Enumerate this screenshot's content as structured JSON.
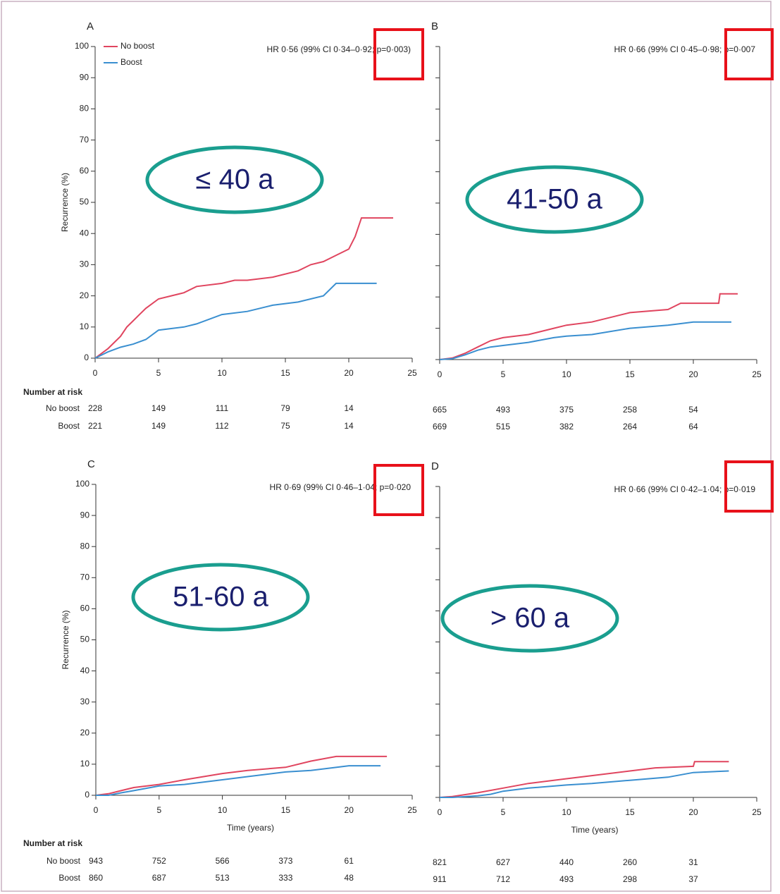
{
  "chart_data": [
    {
      "type": "line",
      "panel": "A",
      "annotation": "≤ 40 a",
      "hr_text": "HR 0·56 (99% CI 0·34–0·92; p=0·003)",
      "ylabel": "Recurrence (%)",
      "risk_title": "Number at risk",
      "show_ytick_labels": true,
      "legend": true,
      "xlim": [
        0,
        25
      ],
      "ylim": [
        0,
        100
      ],
      "xticks": [
        0,
        5,
        10,
        15,
        20,
        25
      ],
      "yticks": [
        0,
        10,
        20,
        30,
        40,
        50,
        60,
        70,
        80,
        90,
        100
      ],
      "series": [
        {
          "name": "No boost",
          "color": "#e0455f",
          "x": [
            0,
            1,
            1.5,
            2,
            2.5,
            3,
            3.5,
            4,
            5,
            6,
            7,
            8,
            10,
            11,
            12,
            14,
            16,
            17,
            18,
            19,
            20,
            20.5,
            21,
            23.5
          ],
          "values": [
            0,
            3,
            5,
            7,
            10,
            12,
            14,
            16,
            19,
            20,
            21,
            23,
            24,
            25,
            25,
            26,
            28,
            30,
            31,
            33,
            35,
            39,
            45,
            45
          ],
          "risk": [
            228,
            149,
            111,
            79,
            14
          ]
        },
        {
          "name": "Boost",
          "color": "#3a8fd0",
          "x": [
            0,
            1,
            2,
            3,
            4,
            5,
            7,
            8,
            10,
            12,
            14,
            16,
            18,
            19,
            20,
            22.2
          ],
          "values": [
            0,
            2,
            3.5,
            4.5,
            6,
            9,
            10,
            11,
            14,
            15,
            17,
            18,
            20,
            24,
            24,
            24
          ],
          "risk": [
            221,
            149,
            112,
            75,
            14
          ]
        }
      ]
    },
    {
      "type": "line",
      "panel": "B",
      "annotation": "41-50 a",
      "hr_text": "HR 0·66 (99% CI 0·45–0·98; p=0·007",
      "show_ytick_labels": false,
      "legend": false,
      "xlim": [
        0,
        25
      ],
      "ylim": [
        0,
        100
      ],
      "xticks": [
        0,
        5,
        10,
        15,
        20,
        25
      ],
      "yticks": [
        0,
        10,
        20,
        30,
        40,
        50,
        60,
        70,
        80,
        90,
        100
      ],
      "series": [
        {
          "color": "#e0455f",
          "x": [
            0,
            1,
            2,
            3,
            4,
            5,
            7,
            9,
            10,
            12,
            15,
            18,
            19,
            22,
            22.1,
            23.5
          ],
          "values": [
            0,
            0.5,
            2,
            4,
            6,
            7,
            8,
            10,
            11,
            12,
            15,
            16,
            18,
            18,
            21,
            21
          ],
          "risk": [
            665,
            493,
            375,
            258,
            54
          ]
        },
        {
          "color": "#3a8fd0",
          "x": [
            0,
            1,
            2,
            3,
            4,
            5,
            7,
            9,
            10,
            12,
            15,
            18,
            20,
            23
          ],
          "values": [
            0,
            0.3,
            1.5,
            3,
            4,
            4.5,
            5.5,
            7,
            7.5,
            8,
            10,
            11,
            12,
            12
          ],
          "risk": [
            669,
            515,
            382,
            264,
            64
          ]
        }
      ]
    },
    {
      "type": "line",
      "panel": "C",
      "annotation": "51-60 a",
      "hr_text": "HR 0·69 (99% CI 0·46–1·04; p=0·020",
      "ylabel": "Recurrence (%)",
      "xlabel": "Time (years)",
      "risk_title": "Number at risk",
      "show_ytick_labels": true,
      "legend": false,
      "xlim": [
        0,
        25
      ],
      "ylim": [
        0,
        100
      ],
      "xticks": [
        0,
        5,
        10,
        15,
        20,
        25
      ],
      "yticks": [
        0,
        10,
        20,
        30,
        40,
        50,
        60,
        70,
        80,
        90,
        100
      ],
      "series": [
        {
          "name": "No boost",
          "color": "#e0455f",
          "x": [
            0,
            1,
            2,
            3,
            5,
            7,
            10,
            12,
            15,
            17,
            19,
            23
          ],
          "values": [
            0,
            0.5,
            1.5,
            2.5,
            3.5,
            5,
            7,
            8,
            9,
            11,
            12.5,
            12.5
          ],
          "risk": [
            943,
            752,
            566,
            373,
            61
          ]
        },
        {
          "name": "Boost",
          "color": "#3a8fd0",
          "x": [
            0,
            1,
            2,
            3,
            5,
            7,
            10,
            12,
            15,
            17,
            20,
            22.5
          ],
          "values": [
            0,
            0,
            0.8,
            1.5,
            3,
            3.5,
            5,
            6,
            7.5,
            8,
            9.5,
            9.5
          ],
          "risk": [
            860,
            687,
            513,
            333,
            48
          ]
        }
      ]
    },
    {
      "type": "line",
      "panel": "D",
      "annotation": "> 60 a",
      "hr_text": "HR 0·66 (99% CI 0·42–1·04; p=0·019",
      "xlabel": "Time (years)",
      "show_ytick_labels": false,
      "legend": false,
      "xlim": [
        0,
        25
      ],
      "ylim": [
        0,
        100
      ],
      "xticks": [
        0,
        5,
        10,
        15,
        20,
        25
      ],
      "yticks": [
        0,
        10,
        20,
        30,
        40,
        50,
        60,
        70,
        80,
        90,
        100
      ],
      "series": [
        {
          "color": "#e0455f",
          "x": [
            0,
            1,
            3,
            5,
            7,
            10,
            12,
            15,
            17,
            20,
            20.1,
            22.8
          ],
          "values": [
            0,
            0.3,
            1.5,
            3,
            4.5,
            6,
            7,
            8.5,
            9.5,
            10,
            11.5,
            11.5
          ],
          "risk": [
            821,
            627,
            440,
            260,
            31
          ]
        },
        {
          "color": "#3a8fd0",
          "x": [
            0,
            1,
            3,
            4,
            5,
            7,
            10,
            12,
            15,
            18,
            20,
            22.8
          ],
          "values": [
            0,
            0,
            0.5,
            1,
            2,
            3,
            4,
            4.5,
            5.5,
            6.5,
            8,
            8.5
          ],
          "risk": [
            911,
            712,
            493,
            298,
            37
          ]
        }
      ]
    }
  ]
}
